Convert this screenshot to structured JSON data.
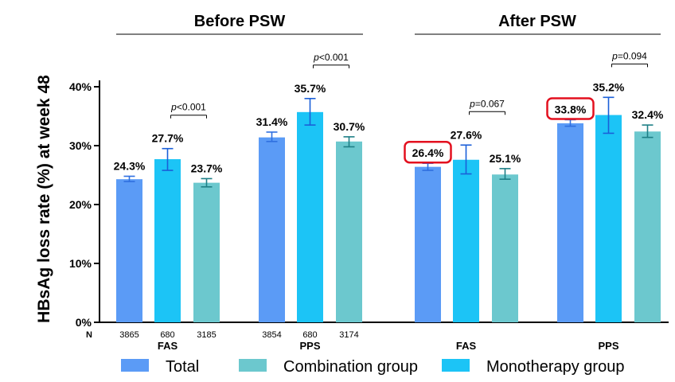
{
  "chart_data": {
    "type": "bar",
    "panels": [
      {
        "title": "Before PSW",
        "groups": [
          {
            "label": "FAS",
            "n": [
              "3865",
              "680",
              "3185"
            ],
            "p_value": "p<0.001",
            "values": [
              24.3,
              27.7,
              23.7
            ],
            "labels": [
              "24.3%",
              "27.7%",
              "23.7%"
            ],
            "err": [
              [
                23.9,
                24.8
              ],
              [
                25.8,
                29.5
              ],
              [
                23.0,
                24.4
              ]
            ],
            "highlighted": [
              false,
              false,
              false
            ]
          },
          {
            "label": "PPS",
            "n": [
              "3854",
              "680",
              "3174"
            ],
            "p_value": "p<0.001",
            "values": [
              31.4,
              35.7,
              30.7
            ],
            "labels": [
              "31.4%",
              "35.7%",
              "30.7%"
            ],
            "err": [
              [
                30.7,
                32.3
              ],
              [
                33.5,
                38.0
              ],
              [
                29.8,
                31.5
              ]
            ],
            "highlighted": [
              false,
              false,
              false
            ]
          }
        ]
      },
      {
        "title": "After PSW",
        "groups": [
          {
            "label": "FAS",
            "n": [
              "",
              "",
              ""
            ],
            "p_value": "p=0.067",
            "values": [
              26.4,
              27.6,
              25.1
            ],
            "labels": [
              "26.4%",
              "27.6%",
              "25.1%"
            ],
            "err": [
              [
                25.8,
                27.0
              ],
              [
                25.2,
                30.1
              ],
              [
                24.3,
                26.1
              ]
            ],
            "highlighted": [
              true,
              false,
              false
            ]
          },
          {
            "label": "PPS",
            "n": [
              "",
              "",
              ""
            ],
            "p_value": "p=0.094",
            "values": [
              33.8,
              35.2,
              32.4
            ],
            "labels": [
              "33.8%",
              "35.2%",
              "32.4%"
            ],
            "err": [
              [
                33.3,
                34.4
              ],
              [
                32.1,
                38.2
              ],
              [
                31.4,
                33.5
              ]
            ],
            "highlighted": [
              true,
              false,
              false
            ]
          }
        ]
      }
    ],
    "series": [
      {
        "name": "Total",
        "color": "#5B9BF6"
      },
      {
        "name": "Monotherapy group",
        "color": "#1CC4F6"
      },
      {
        "name": "Combination group",
        "color": "#6CC8CE"
      }
    ],
    "legend_order": [
      "Total",
      "Combination group",
      "Monotherapy group"
    ],
    "legend_colors": [
      "#5B9BF6",
      "#6CC8CE",
      "#1CC4F6"
    ],
    "error_colors": [
      "#2F6FE0",
      "#1A5FD8",
      "#1E7F86"
    ],
    "highlight_color": "#E3101F",
    "ylabel": "HBsAg loss rate (%) at week 48",
    "yticks": [
      "0%",
      "10%",
      "20%",
      "30%",
      "40%"
    ],
    "ylim": [
      0,
      40
    ],
    "n_label": "N",
    "legend_position": "bottom",
    "grid": false
  }
}
